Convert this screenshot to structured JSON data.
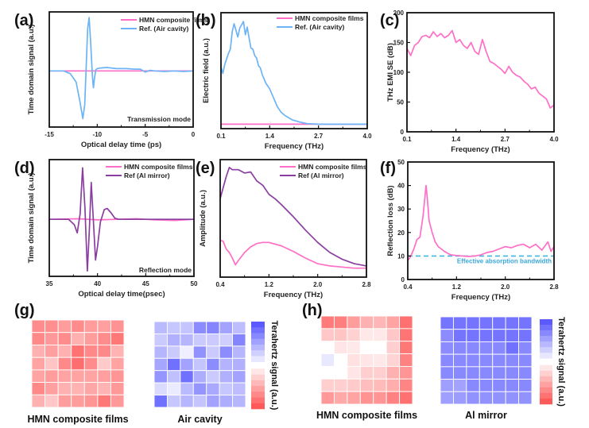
{
  "colors": {
    "hmn": "#ff6ec7",
    "air": "#6cb4f5",
    "al_mirror": "#8a3fa0",
    "eab_line": "#3ab7e6",
    "heat_red": "#ff5a5a",
    "heat_blue": "#5a5aff"
  },
  "chart_data": [
    {
      "id": "a",
      "panel_label": "(a)",
      "type": "line",
      "xlabel": "Optical delay time (ps)",
      "ylabel": "Time domain signal (a.u.)",
      "xlim": [
        -15,
        0
      ],
      "ylim": [
        -1,
        1.05
      ],
      "xticks": [
        -15,
        -10,
        -5,
        0
      ],
      "xtick_labels": [
        "-15",
        "-10",
        "-5",
        "0"
      ],
      "annotation": "Transmission mode",
      "legend_position": "top-right",
      "series": [
        {
          "name": "HMN composite films",
          "color_key": "hmn",
          "x": [
            -15,
            0
          ],
          "y": [
            0,
            0
          ]
        },
        {
          "name": "Ref. (Air cavity)",
          "color_key": "air",
          "x": [
            -15,
            -13.5,
            -12.8,
            -12.2,
            -11.8,
            -11.5,
            -11.3,
            -11.15,
            -11.0,
            -10.85,
            -10.7,
            -10.5,
            -10.4,
            -10.3,
            -10.15,
            -10.0,
            -9.7,
            -9.0,
            -8.0,
            -7.0,
            -6.0,
            -5.5,
            -5.0,
            -4.5,
            -4.0,
            -3.0,
            -2.0,
            -1.0,
            0
          ],
          "y": [
            0,
            0,
            -0.05,
            -0.2,
            -0.55,
            -0.85,
            -0.6,
            0.1,
            0.75,
            0.95,
            0.55,
            -0.1,
            -0.3,
            -0.15,
            0.02,
            0.04,
            0.05,
            0.06,
            0.04,
            0.04,
            0.03,
            0.03,
            -0.02,
            0.01,
            0,
            -0.01,
            0.0,
            -0.01,
            0
          ]
        }
      ]
    },
    {
      "id": "b",
      "panel_label": "(b)",
      "type": "line",
      "xlabel": "Frequency (THz)",
      "ylabel": "Electric field (a.u.)",
      "xlim": [
        0.1,
        4.0
      ],
      "ylim": [
        0,
        1.05
      ],
      "xticks": [
        0.1,
        1.4,
        2.7,
        4.0
      ],
      "xtick_labels": [
        "0.1",
        "1.4",
        "2.7",
        "4.0"
      ],
      "legend_position": "top-right",
      "series": [
        {
          "name": "HMN composite films",
          "color_key": "hmn",
          "x": [
            0.1,
            4.0
          ],
          "y": [
            0.04,
            0.04
          ]
        },
        {
          "name": "Ref. (Air cavity)",
          "color_key": "air",
          "x": [
            0.1,
            0.15,
            0.2,
            0.3,
            0.35,
            0.4,
            0.45,
            0.55,
            0.6,
            0.7,
            0.75,
            0.8,
            0.85,
            0.9,
            0.95,
            1.0,
            1.05,
            1.1,
            1.15,
            1.2,
            1.3,
            1.4,
            1.5,
            1.6,
            1.7,
            1.8,
            2.0,
            2.2,
            2.4,
            2.7,
            3.0,
            4.0
          ],
          "y": [
            0.56,
            0.5,
            0.58,
            0.68,
            0.72,
            0.88,
            0.95,
            0.83,
            0.91,
            0.97,
            0.85,
            0.92,
            0.82,
            0.73,
            0.72,
            0.66,
            0.64,
            0.57,
            0.55,
            0.49,
            0.41,
            0.36,
            0.28,
            0.2,
            0.15,
            0.12,
            0.08,
            0.06,
            0.045,
            0.04,
            0.04,
            0.04
          ]
        }
      ]
    },
    {
      "id": "c",
      "panel_label": "(c)",
      "type": "line",
      "xlabel": "Frequency (THz)",
      "ylabel": "THz EMI SE (dB)",
      "xlim": [
        0.1,
        4.0
      ],
      "ylim": [
        0,
        200
      ],
      "xticks": [
        0.1,
        1.4,
        2.7,
        4.0
      ],
      "xtick_labels": [
        "0.1",
        "1.4",
        "2.7",
        "4.0"
      ],
      "yticks": [
        0,
        50,
        100,
        150,
        200
      ],
      "ytick_labels": [
        "0",
        "50",
        "100",
        "150",
        "200"
      ],
      "series": [
        {
          "name": "HMN composite films",
          "color_key": "hmn",
          "x": [
            0.1,
            0.2,
            0.3,
            0.4,
            0.5,
            0.6,
            0.7,
            0.8,
            0.9,
            1.0,
            1.1,
            1.2,
            1.3,
            1.4,
            1.5,
            1.6,
            1.7,
            1.8,
            1.9,
            2.0,
            2.1,
            2.2,
            2.3,
            2.4,
            2.5,
            2.6,
            2.7,
            2.8,
            2.9,
            3.0,
            3.1,
            3.2,
            3.3,
            3.4,
            3.5,
            3.6,
            3.7,
            3.8,
            3.9,
            4.0
          ],
          "y": [
            140,
            128,
            145,
            150,
            160,
            162,
            158,
            168,
            160,
            165,
            158,
            162,
            170,
            150,
            155,
            145,
            140,
            150,
            135,
            130,
            155,
            135,
            118,
            115,
            110,
            105,
            98,
            110,
            100,
            95,
            92,
            85,
            80,
            72,
            75,
            65,
            60,
            55,
            40,
            45
          ]
        }
      ]
    },
    {
      "id": "d",
      "panel_label": "(d)",
      "type": "line",
      "xlabel": "Optical delay time(psec)",
      "ylabel": "Time domain signal (a.u.)",
      "xlim": [
        35,
        50
      ],
      "ylim": [
        -1.05,
        1.1
      ],
      "xticks": [
        35,
        40,
        45,
        50
      ],
      "xtick_labels": [
        "35",
        "40",
        "45",
        "50"
      ],
      "annotation": "Reflection mode",
      "legend_position": "top-right",
      "series": [
        {
          "name": "HMN composite films",
          "color_key": "hmn",
          "x": [
            35,
            38,
            40,
            42,
            44,
            46,
            48,
            50
          ],
          "y": [
            0,
            0.01,
            -0.01,
            0.0,
            0.01,
            -0.01,
            -0.02,
            0.0
          ]
        },
        {
          "name": "Ref (Al mirror)",
          "color_key": "al_mirror",
          "x": [
            35,
            37.0,
            37.6,
            37.9,
            38.2,
            38.45,
            38.7,
            38.95,
            39.15,
            39.35,
            39.55,
            39.8,
            40.0,
            40.3,
            40.7,
            41.0,
            41.4,
            41.8,
            42.2,
            50
          ],
          "y": [
            0,
            0,
            -0.1,
            -0.25,
            0.1,
            0.95,
            0.2,
            -0.95,
            -0.2,
            0.68,
            0.05,
            -0.75,
            -0.5,
            -0.05,
            0.18,
            0.2,
            0.12,
            0.02,
            0.0,
            0.0
          ]
        }
      ]
    },
    {
      "id": "e",
      "panel_label": "(e)",
      "type": "line",
      "xlabel": "Frequency (THz)",
      "ylabel": "Amplitude (a.u.)",
      "xlim": [
        0.4,
        2.8
      ],
      "ylim": [
        0,
        1.05
      ],
      "xticks": [
        0.4,
        1.2,
        2.0,
        2.8
      ],
      "xtick_labels": [
        "0.4",
        "1.2",
        "2.0",
        "2.8"
      ],
      "legend_position": "top-right",
      "series": [
        {
          "name": "HMN composite films",
          "color_key": "hmn",
          "x": [
            0.4,
            0.45,
            0.5,
            0.55,
            0.6,
            0.65,
            0.7,
            0.8,
            0.9,
            1.0,
            1.1,
            1.2,
            1.4,
            1.6,
            1.8,
            2.0,
            2.2,
            2.4,
            2.6,
            2.8
          ],
          "y": [
            0.33,
            0.32,
            0.25,
            0.22,
            0.17,
            0.11,
            0.15,
            0.22,
            0.27,
            0.3,
            0.31,
            0.31,
            0.28,
            0.23,
            0.17,
            0.12,
            0.1,
            0.09,
            0.08,
            0.08
          ]
        },
        {
          "name": "Ref (Al mirror)",
          "color_key": "al_mirror",
          "x": [
            0.4,
            0.45,
            0.5,
            0.55,
            0.6,
            0.7,
            0.8,
            0.9,
            1.0,
            1.1,
            1.2,
            1.3,
            1.4,
            1.6,
            1.8,
            2.0,
            2.2,
            2.4,
            2.6,
            2.8
          ],
          "y": [
            0.7,
            0.8,
            0.9,
            0.98,
            0.96,
            0.96,
            0.93,
            0.94,
            0.86,
            0.82,
            0.74,
            0.7,
            0.65,
            0.54,
            0.42,
            0.31,
            0.22,
            0.16,
            0.12,
            0.1
          ]
        }
      ]
    },
    {
      "id": "f",
      "panel_label": "(f)",
      "type": "line",
      "xlabel": "Frequency (THz)",
      "ylabel": "Reflection loss (dB)",
      "xlim": [
        0.4,
        2.8
      ],
      "ylim": [
        0,
        50
      ],
      "xticks": [
        0.4,
        1.2,
        2.0,
        2.8
      ],
      "xtick_labels": [
        "0.4",
        "1.2",
        "2.0",
        "2.8"
      ],
      "yticks": [
        0,
        10,
        20,
        30,
        40,
        50
      ],
      "ytick_labels": [
        "0",
        "10",
        "20",
        "30",
        "40",
        "50"
      ],
      "annotation": "Effective absorption bandwidth",
      "threshold_db": 10,
      "series": [
        {
          "name": "HMN composite films",
          "color_key": "hmn",
          "x": [
            0.4,
            0.45,
            0.5,
            0.55,
            0.6,
            0.65,
            0.7,
            0.72,
            0.75,
            0.8,
            0.85,
            0.9,
            1.0,
            1.1,
            1.2,
            1.3,
            1.4,
            1.5,
            1.6,
            1.7,
            1.8,
            1.9,
            2.0,
            2.1,
            2.2,
            2.3,
            2.4,
            2.5,
            2.6,
            2.7,
            2.75,
            2.8
          ],
          "y": [
            8,
            10,
            13,
            17,
            18,
            27,
            40,
            35,
            25,
            20,
            16,
            14,
            12,
            10.5,
            10.2,
            10,
            9.8,
            10,
            10.5,
            11.5,
            12,
            13,
            14,
            13.5,
            14.5,
            15,
            13.5,
            15,
            12.5,
            16,
            12,
            14
          ]
        }
      ]
    },
    {
      "id": "g",
      "panel_label": "(g)",
      "type": "heatmap",
      "colorbar_label": "Terahertz signal (a.u.)",
      "maps": [
        {
          "title": "HMN composite films",
          "sign": "negative",
          "values": [
            [
              0.7,
              0.68,
              0.6,
              0.7,
              0.6,
              0.58,
              0.66
            ],
            [
              0.72,
              0.62,
              0.7,
              0.48,
              0.6,
              0.7,
              0.82
            ],
            [
              0.48,
              0.58,
              0.48,
              0.85,
              0.72,
              0.72,
              0.46
            ],
            [
              0.56,
              0.36,
              0.72,
              0.88,
              0.7,
              0.32,
              0.56
            ],
            [
              0.56,
              0.6,
              0.56,
              0.56,
              0.56,
              0.58,
              0.64
            ],
            [
              0.72,
              0.58,
              0.48,
              0.46,
              0.54,
              0.46,
              0.62
            ],
            [
              0.48,
              0.34,
              0.6,
              0.6,
              0.64,
              0.82,
              0.62
            ]
          ]
        },
        {
          "title": "Air cavity",
          "sign": "positive",
          "values": [
            [
              0.42,
              0.34,
              0.36,
              0.7,
              0.74,
              0.56,
              0.4
            ],
            [
              0.32,
              0.48,
              0.44,
              0.32,
              0.32,
              0.3,
              0.74
            ],
            [
              0.44,
              0.32,
              0.1,
              0.66,
              0.32,
              0.7,
              0.44
            ],
            [
              0.54,
              0.86,
              0.56,
              0.36,
              0.7,
              0.46,
              0.48
            ],
            [
              0.64,
              0.38,
              0.86,
              0.5,
              0.32,
              0.48,
              0.56
            ],
            [
              0.22,
              0.12,
              0.42,
              0.64,
              0.52,
              0.34,
              0.4
            ],
            [
              0.86,
              0.34,
              0.44,
              0.36,
              0.56,
              0.5,
              0.44
            ]
          ]
        }
      ]
    },
    {
      "id": "h",
      "panel_label": "(h)",
      "type": "heatmap",
      "colorbar_label": "Terahertz signal (a.u.)",
      "maps": [
        {
          "title": "HMN composite films",
          "sign": "negative",
          "values": [
            [
              0.8,
              0.78,
              0.6,
              0.48,
              0.44,
              0.56,
              0.86
            ],
            [
              0.34,
              0.36,
              0.28,
              0.14,
              0.14,
              0.34,
              0.84
            ],
            [
              0.0,
              0.16,
              0.14,
              0.0,
              0.0,
              0.3,
              0.82
            ],
            [
              -0.14,
              0.0,
              0.18,
              0.16,
              0.14,
              0.26,
              0.76
            ],
            [
              0.0,
              0.0,
              0.16,
              0.3,
              0.3,
              0.48,
              0.64
            ],
            [
              0.3,
              0.3,
              0.32,
              0.4,
              0.42,
              0.5,
              0.74
            ],
            [
              0.62,
              0.52,
              0.56,
              0.66,
              0.64,
              0.76,
              0.86
            ]
          ]
        },
        {
          "title": "Al mirror",
          "sign": "positive",
          "values": [
            [
              0.84,
              0.84,
              0.84,
              0.84,
              0.84,
              0.84,
              0.84
            ],
            [
              0.7,
              0.84,
              0.84,
              0.84,
              0.84,
              0.84,
              0.84
            ],
            [
              0.7,
              0.72,
              0.72,
              0.72,
              0.72,
              0.86,
              0.72
            ],
            [
              0.72,
              0.72,
              0.72,
              0.72,
              0.72,
              0.72,
              0.72
            ],
            [
              0.72,
              0.72,
              0.72,
              0.72,
              0.72,
              0.72,
              0.72
            ],
            [
              0.58,
              0.56,
              0.72,
              0.72,
              0.72,
              0.72,
              0.72
            ],
            [
              0.58,
              0.6,
              0.66,
              0.66,
              0.66,
              0.66,
              0.66
            ]
          ]
        }
      ]
    }
  ]
}
